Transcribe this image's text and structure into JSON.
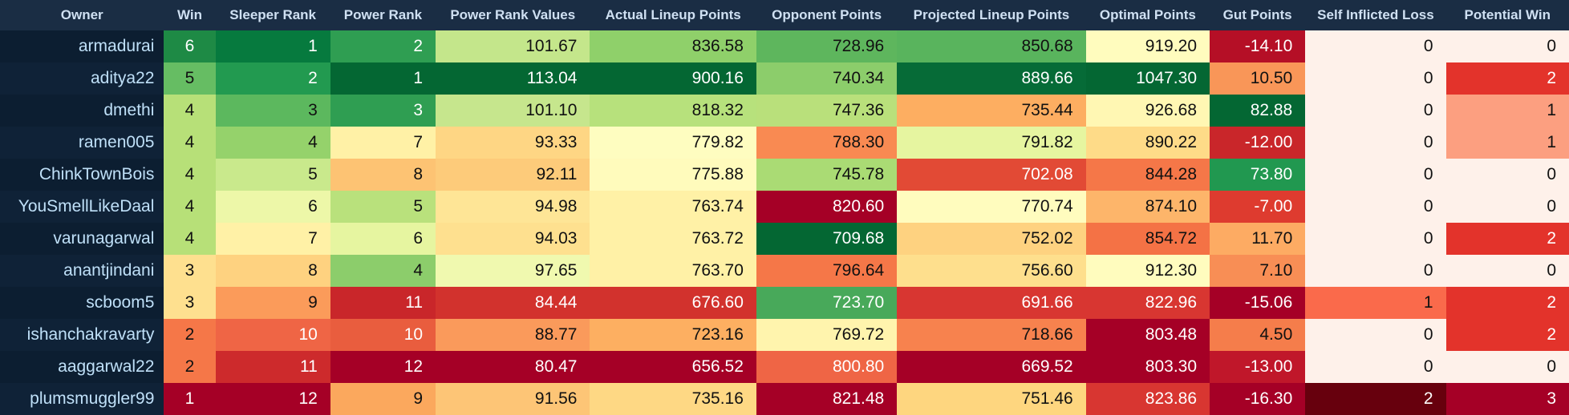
{
  "columns": [
    "Owner",
    "Win",
    "Sleeper Rank",
    "Power Rank",
    "Power Rank Values",
    "Actual Lineup Points",
    "Opponent Points",
    "Projected Lineup Points",
    "Optimal Points",
    "Gut Points",
    "Self Inflicted Loss",
    "Potential Win"
  ],
  "rows": [
    {
      "values": [
        "armadurai",
        "6",
        "1",
        "2",
        "101.67",
        "836.58",
        "728.96",
        "850.68",
        "919.20",
        "-14.10",
        "0",
        "0"
      ],
      "colors": [
        "",
        "#1e8a45",
        "#067a3e",
        "#2f9e52",
        "#c4e68b",
        "#8fd06a",
        "#5eb65d",
        "#59b45d",
        "#fffcbe",
        "#b50f26",
        "#fef1ea",
        "#fef1ea"
      ]
    },
    {
      "values": [
        "aditya22",
        "5",
        "2",
        "1",
        "113.04",
        "900.16",
        "740.34",
        "889.66",
        "1047.30",
        "10.50",
        "0",
        "2"
      ],
      "colors": [
        "",
        "#66bd63",
        "#229a50",
        "#046733",
        "#046733",
        "#046733",
        "#8ccd6b",
        "#066b37",
        "#046733",
        "#f99658",
        "#fef1ea",
        "#e3332b"
      ]
    },
    {
      "values": [
        "dmethi",
        "4",
        "3",
        "3",
        "101.10",
        "818.32",
        "747.36",
        "735.44",
        "926.68",
        "82.88",
        "0",
        "1"
      ],
      "colors": [
        "",
        "#b7e078",
        "#5cb85e",
        "#2f9e52",
        "#c6e68d",
        "#b7e17c",
        "#b9e07b",
        "#fdae61",
        "#fff7b3",
        "#046733",
        "#fef1ea",
        "#fc9f80"
      ]
    },
    {
      "values": [
        "ramen005",
        "4",
        "4",
        "7",
        "93.33",
        "779.82",
        "788.30",
        "791.82",
        "890.22",
        "-12.00",
        "0",
        "1"
      ],
      "colors": [
        "",
        "#b7e078",
        "#95d26b",
        "#fff1a6",
        "#fed684",
        "#fefdc0",
        "#f98a52",
        "#e6f5a0",
        "#fedb88",
        "#c9262a",
        "#fef1ea",
        "#fc9f80"
      ]
    },
    {
      "values": [
        "ChinkTownBois",
        "4",
        "5",
        "8",
        "92.11",
        "775.88",
        "745.78",
        "702.08",
        "844.28",
        "73.80",
        "0",
        "0"
      ],
      "colors": [
        "",
        "#b7e078",
        "#c9e98c",
        "#fdc373",
        "#fdcb7a",
        "#fffbbc",
        "#aadb74",
        "#e24a35",
        "#f57748",
        "#219850",
        "#fef1ea",
        "#fef1ea"
      ]
    },
    {
      "values": [
        "YouSmellLikeDaal",
        "4",
        "6",
        "5",
        "94.98",
        "763.74",
        "820.60",
        "770.74",
        "874.10",
        "-7.00",
        "0",
        "0"
      ],
      "colors": [
        "",
        "#b7e078",
        "#edf7a8",
        "#b9e17c",
        "#fee596",
        "#fff1a6",
        "#a50026",
        "#fffcbe",
        "#fdb56a",
        "#de3b2f",
        "#fef1ea",
        "#fef1ea"
      ]
    },
    {
      "values": [
        "varunagarwal",
        "4",
        "7",
        "6",
        "94.03",
        "763.72",
        "709.68",
        "752.02",
        "854.72",
        "11.70",
        "0",
        "2"
      ],
      "colors": [
        "",
        "#b7e078",
        "#fff1a6",
        "#e6f5a0",
        "#fee08f",
        "#fff1a6",
        "#046733",
        "#fed280",
        "#f47245",
        "#fdab63",
        "#fef1ea",
        "#e3332b"
      ]
    },
    {
      "values": [
        "anantjindani",
        "3",
        "8",
        "4",
        "97.65",
        "763.70",
        "796.64",
        "756.60",
        "912.30",
        "7.10",
        "0",
        "0"
      ],
      "colors": [
        "",
        "#fee08f",
        "#fed280",
        "#8ccd6b",
        "#f0f9af",
        "#fff1a6",
        "#f57748",
        "#fedf8d",
        "#fffcbe",
        "#f88e55",
        "#fef1ea",
        "#fef1ea"
      ]
    },
    {
      "values": [
        "scboom5",
        "3",
        "9",
        "11",
        "84.44",
        "676.60",
        "723.70",
        "691.66",
        "822.96",
        "-15.06",
        "1",
        "2"
      ],
      "colors": [
        "",
        "#fee08f",
        "#fb9b5a",
        "#c9262a",
        "#d2322d",
        "#d2322d",
        "#48a95a",
        "#d83631",
        "#d83631",
        "#a50026",
        "#fa6a4b",
        "#e3332b"
      ]
    },
    {
      "values": [
        "ishanchakravarty",
        "2",
        "10",
        "10",
        "88.77",
        "723.16",
        "769.72",
        "718.66",
        "803.48",
        "4.50",
        "0",
        "2"
      ],
      "colors": [
        "",
        "#f57748",
        "#ef6545",
        "#e95d3e",
        "#fa9a5b",
        "#fdaf61",
        "#fff4ad",
        "#f7824e",
        "#a50026",
        "#f57d4b",
        "#fef1ea",
        "#e3332b"
      ]
    },
    {
      "values": [
        "aaggarwal22",
        "2",
        "11",
        "12",
        "80.47",
        "656.52",
        "800.80",
        "669.52",
        "803.30",
        "-13.00",
        "0",
        "0"
      ],
      "colors": [
        "",
        "#f57748",
        "#cd2a2c",
        "#a50026",
        "#a50026",
        "#a50026",
        "#ef6545",
        "#a50026",
        "#a50026",
        "#c0172a",
        "#fef1ea",
        "#fef1ea"
      ]
    },
    {
      "values": [
        "plumsmuggler99",
        "1",
        "12",
        "9",
        "91.56",
        "735.16",
        "821.48",
        "751.46",
        "823.86",
        "-16.30",
        "2",
        "3"
      ],
      "colors": [
        "",
        "#a50026",
        "#a50026",
        "#fba85d",
        "#fdc576",
        "#fed884",
        "#a50026",
        "#fed67f",
        "#d83631",
        "#a50026",
        "#67000d",
        "#a50026"
      ]
    }
  ]
}
